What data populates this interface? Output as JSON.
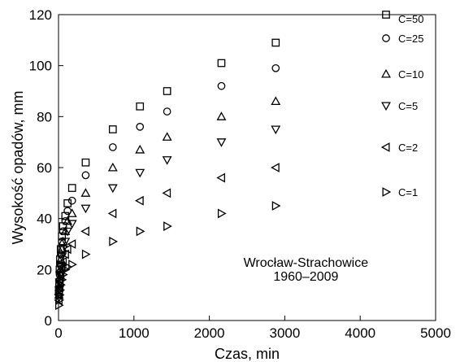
{
  "chart_data": {
    "type": "scatter",
    "title": "",
    "xlabel": "Czas, min",
    "ylabel": "Wysokość opadów, mm",
    "xlim": [
      0,
      5000
    ],
    "ylim": [
      0,
      120
    ],
    "xticks": [
      0,
      1000,
      2000,
      3000,
      4000,
      5000
    ],
    "yticks": [
      0,
      20,
      40,
      60,
      80,
      100,
      120
    ],
    "grid": false,
    "legend_position": "right",
    "annotation": [
      "Wrocław-Strachowice",
      "1960–2009"
    ],
    "x": [
      5,
      10,
      15,
      20,
      30,
      45,
      60,
      90,
      120,
      180,
      360,
      720,
      1080,
      1440,
      2160,
      2880
    ],
    "series": [
      {
        "name": "C=50",
        "marker": "square",
        "values": [
          12,
          15,
          20,
          24,
          28,
          33,
          37,
          41,
          46,
          52,
          62,
          75,
          84,
          90,
          101,
          109
        ]
      },
      {
        "name": "C=25",
        "marker": "circle",
        "values": [
          11,
          14,
          18,
          22,
          26,
          31,
          35,
          39,
          43,
          47,
          57,
          68,
          76,
          82,
          92,
          99
        ]
      },
      {
        "name": "C=10",
        "marker": "triangle-up",
        "values": [
          10,
          13,
          17,
          20,
          24,
          28,
          31,
          35,
          39,
          42,
          50,
          60,
          67,
          72,
          80,
          86
        ]
      },
      {
        "name": "C=5",
        "marker": "triangle-down",
        "values": [
          9,
          12,
          15,
          18,
          21,
          25,
          28,
          31,
          35,
          38,
          44,
          52,
          58,
          63,
          70,
          75
        ]
      },
      {
        "name": "C=2",
        "marker": "triangle-left",
        "values": [
          8,
          10,
          13,
          15,
          18,
          21,
          23,
          26,
          28,
          30,
          35,
          42,
          47,
          50,
          56,
          60
        ]
      },
      {
        "name": "C=1",
        "marker": "triangle-right",
        "values": [
          6,
          8,
          10,
          12,
          14,
          16,
          18,
          20,
          21,
          22,
          26,
          31,
          35,
          37,
          42,
          45
        ]
      }
    ]
  }
}
